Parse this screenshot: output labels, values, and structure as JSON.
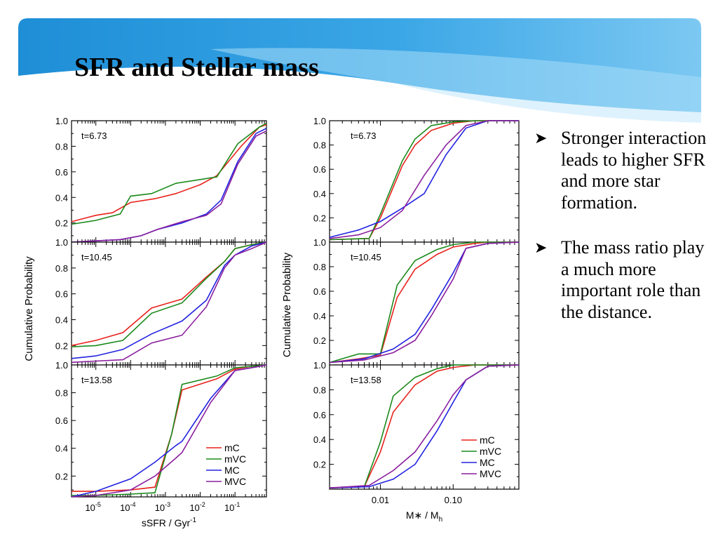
{
  "slide": {
    "title": "SFR and Stellar mass",
    "bullets": [
      "Stronger interaction leads to higher SFR and more star formation.",
      "The mass ratio play a much more important role than the distance."
    ],
    "bullet_icon": "arrow-bullet-icon",
    "banner_colors": [
      "#1e90d8",
      "#4fb3ea",
      "#9fd6f5"
    ]
  },
  "chart_data": [
    {
      "type": "line",
      "ylabel": "Cumulative Probability",
      "xlabel": "sSFR / Gyr",
      "xlabel_superscript": "-1",
      "xscale": "log",
      "xlim": [
        2e-06,
        0.8
      ],
      "x_ticks": [
        1e-05,
        0.0001,
        0.001,
        0.01,
        0.1
      ],
      "x_tick_base": "10",
      "x_tick_exponents": [
        "-5",
        "-4",
        "-3",
        "-2",
        "-1"
      ],
      "ylim": [
        0.05,
        1.0
      ],
      "y_ticks": [
        "0.2",
        "0.4",
        "0.6",
        "0.8",
        "1.0"
      ],
      "legend": [
        "mC",
        "mVC",
        "MC",
        "MVC"
      ],
      "legend_position": "bottom-right of bottom panel",
      "colors": {
        "mC": "#e8221c",
        "mVC": "#1c8a1c",
        "MC": "#2222e0",
        "MVC": "#8a1e9e"
      },
      "panels": [
        {
          "label": "t=6.73",
          "series": [
            {
              "name": "mC",
              "x": [
                2e-06,
                1e-05,
                3e-05,
                0.0001,
                0.0005,
                0.002,
                0.01,
                0.03,
                0.15,
                0.5,
                0.8
              ],
              "y": [
                0.21,
                0.26,
                0.28,
                0.36,
                0.39,
                0.43,
                0.5,
                0.57,
                0.8,
                0.95,
                0.97
              ]
            },
            {
              "name": "mVC",
              "x": [
                2e-06,
                1e-05,
                5e-05,
                0.0001,
                0.0004,
                0.002,
                0.01,
                0.03,
                0.12,
                0.5,
                0.8
              ],
              "y": [
                0.19,
                0.22,
                0.27,
                0.41,
                0.43,
                0.51,
                0.54,
                0.56,
                0.82,
                0.95,
                0.98
              ]
            },
            {
              "name": "MC",
              "x": [
                2e-06,
                1e-05,
                5e-05,
                0.0002,
                0.0006,
                0.003,
                0.015,
                0.04,
                0.12,
                0.4,
                0.8
              ],
              "y": [
                0.05,
                0.06,
                0.07,
                0.1,
                0.15,
                0.2,
                0.27,
                0.38,
                0.68,
                0.9,
                0.94
              ]
            },
            {
              "name": "MVC",
              "x": [
                2e-06,
                1e-05,
                5e-05,
                0.0002,
                0.0006,
                0.003,
                0.015,
                0.04,
                0.12,
                0.4,
                0.8
              ],
              "y": [
                0.05,
                0.06,
                0.07,
                0.1,
                0.15,
                0.21,
                0.26,
                0.35,
                0.66,
                0.88,
                0.92
              ]
            }
          ]
        },
        {
          "label": "t=10.45",
          "series": [
            {
              "name": "mC",
              "x": [
                2e-06,
                1e-05,
                6e-05,
                0.0004,
                0.003,
                0.015,
                0.05,
                0.1,
                0.3,
                0.8
              ],
              "y": [
                0.2,
                0.24,
                0.3,
                0.49,
                0.56,
                0.73,
                0.85,
                0.95,
                0.98,
                1.0
              ]
            },
            {
              "name": "mVC",
              "x": [
                2e-06,
                1e-05,
                6e-05,
                0.0004,
                0.003,
                0.015,
                0.05,
                0.1,
                0.3,
                0.8
              ],
              "y": [
                0.19,
                0.2,
                0.24,
                0.45,
                0.53,
                0.72,
                0.85,
                0.95,
                0.98,
                1.0
              ]
            },
            {
              "name": "MC",
              "x": [
                2e-06,
                1e-05,
                6e-05,
                0.0004,
                0.003,
                0.015,
                0.05,
                0.1,
                0.3,
                0.8
              ],
              "y": [
                0.1,
                0.12,
                0.17,
                0.29,
                0.39,
                0.55,
                0.82,
                0.9,
                0.97,
                1.0
              ]
            },
            {
              "name": "MVC",
              "x": [
                2e-06,
                1e-05,
                6e-05,
                0.0004,
                0.003,
                0.015,
                0.05,
                0.1,
                0.3,
                0.8
              ],
              "y": [
                0.07,
                0.08,
                0.09,
                0.22,
                0.28,
                0.5,
                0.8,
                0.9,
                0.95,
                1.0
              ]
            }
          ]
        },
        {
          "label": "t=13.58",
          "series": [
            {
              "name": "mC",
              "x": [
                2e-06,
                1e-05,
                0.0001,
                0.0005,
                0.0015,
                0.003,
                0.03,
                0.1,
                0.3,
                0.8
              ],
              "y": [
                0.09,
                0.09,
                0.1,
                0.12,
                0.5,
                0.82,
                0.9,
                0.97,
                0.99,
                1.0
              ]
            },
            {
              "name": "mVC",
              "x": [
                2e-06,
                1e-05,
                0.0001,
                0.0005,
                0.0015,
                0.003,
                0.03,
                0.1,
                0.3,
                0.8
              ],
              "y": [
                0.06,
                0.06,
                0.07,
                0.08,
                0.5,
                0.86,
                0.92,
                0.98,
                0.99,
                1.0
              ]
            },
            {
              "name": "MC",
              "x": [
                2e-06,
                1e-05,
                0.0001,
                0.0005,
                0.002,
                0.003,
                0.02,
                0.1,
                0.3,
                0.8
              ],
              "y": [
                0.05,
                0.09,
                0.18,
                0.3,
                0.42,
                0.45,
                0.76,
                0.96,
                0.98,
                1.0
              ]
            },
            {
              "name": "MVC",
              "x": [
                2e-06,
                1e-05,
                0.0001,
                0.0005,
                0.002,
                0.003,
                0.02,
                0.1,
                0.3,
                0.8
              ],
              "y": [
                0.05,
                0.06,
                0.1,
                0.2,
                0.33,
                0.37,
                0.73,
                0.96,
                0.98,
                1.0
              ]
            }
          ]
        }
      ]
    },
    {
      "type": "line",
      "ylabel": "Cumulative Probability",
      "xlabel": "M∗ / M",
      "xlabel_subscript": "h",
      "xscale": "log",
      "xlim": [
        0.002,
        0.8
      ],
      "x_ticks": [
        0.01,
        0.1
      ],
      "x_tick_labels": [
        "0.01",
        "0.10"
      ],
      "ylim": [
        0.0,
        1.0
      ],
      "y_ticks": [
        "0.2",
        "0.4",
        "0.6",
        "0.8",
        "1.0"
      ],
      "legend": [
        "mC",
        "mVC",
        "MC",
        "MVC"
      ],
      "legend_position": "bottom-right of bottom panel",
      "colors": {
        "mC": "#e8221c",
        "mVC": "#1c8a1c",
        "MC": "#2222e0",
        "MVC": "#8a1e9e"
      },
      "panels": [
        {
          "label": "t=6.73",
          "series": [
            {
              "name": "mC",
              "x": [
                0.002,
                0.007,
                0.01,
                0.02,
                0.03,
                0.05,
                0.1,
                0.2,
                0.3,
                0.8
              ],
              "y": [
                0.02,
                0.03,
                0.2,
                0.63,
                0.8,
                0.92,
                0.98,
                1.0,
                1.0,
                1.0
              ]
            },
            {
              "name": "mVC",
              "x": [
                0.002,
                0.007,
                0.01,
                0.02,
                0.03,
                0.05,
                0.1,
                0.2,
                0.3,
                0.8
              ],
              "y": [
                0.02,
                0.03,
                0.23,
                0.67,
                0.85,
                0.96,
                0.99,
                1.0,
                1.0,
                1.0
              ]
            },
            {
              "name": "MC",
              "x": [
                0.002,
                0.005,
                0.01,
                0.02,
                0.04,
                0.08,
                0.15,
                0.3,
                0.8
              ],
              "y": [
                0.04,
                0.1,
                0.17,
                0.28,
                0.4,
                0.72,
                0.94,
                1.0,
                1.0
              ]
            },
            {
              "name": "MVC",
              "x": [
                0.002,
                0.005,
                0.01,
                0.02,
                0.04,
                0.08,
                0.15,
                0.3,
                0.8
              ],
              "y": [
                0.03,
                0.06,
                0.12,
                0.26,
                0.55,
                0.8,
                0.96,
                1.0,
                1.0
              ]
            }
          ]
        },
        {
          "label": "t=10.45",
          "series": [
            {
              "name": "mC",
              "x": [
                0.002,
                0.005,
                0.01,
                0.017,
                0.03,
                0.06,
                0.1,
                0.2,
                0.3,
                0.8
              ],
              "y": [
                0.02,
                0.05,
                0.08,
                0.55,
                0.78,
                0.9,
                0.96,
                0.99,
                1.0,
                1.0
              ]
            },
            {
              "name": "mVC",
              "x": [
                0.002,
                0.005,
                0.01,
                0.017,
                0.03,
                0.06,
                0.1,
                0.2,
                0.3,
                0.8
              ],
              "y": [
                0.02,
                0.09,
                0.09,
                0.65,
                0.85,
                0.94,
                0.98,
                1.0,
                1.0,
                1.0
              ]
            },
            {
              "name": "MC",
              "x": [
                0.002,
                0.006,
                0.015,
                0.03,
                0.05,
                0.1,
                0.15,
                0.3,
                0.8
              ],
              "y": [
                0.02,
                0.05,
                0.13,
                0.25,
                0.45,
                0.75,
                0.95,
                0.99,
                1.0
              ]
            },
            {
              "name": "MVC",
              "x": [
                0.002,
                0.006,
                0.015,
                0.03,
                0.05,
                0.1,
                0.15,
                0.3,
                0.8
              ],
              "y": [
                0.02,
                0.04,
                0.1,
                0.2,
                0.4,
                0.7,
                0.95,
                0.99,
                1.0
              ]
            }
          ]
        },
        {
          "label": "t=13.58",
          "series": [
            {
              "name": "mC",
              "x": [
                0.002,
                0.006,
                0.01,
                0.015,
                0.03,
                0.06,
                0.1,
                0.2,
                0.3,
                0.8
              ],
              "y": [
                0.01,
                0.02,
                0.3,
                0.62,
                0.84,
                0.95,
                0.98,
                1.0,
                1.0,
                1.0
              ]
            },
            {
              "name": "mVC",
              "x": [
                0.002,
                0.006,
                0.01,
                0.015,
                0.03,
                0.06,
                0.1,
                0.2,
                0.3,
                0.8
              ],
              "y": [
                0.01,
                0.02,
                0.38,
                0.75,
                0.9,
                0.97,
                1.0,
                1.0,
                1.0,
                1.0
              ]
            },
            {
              "name": "MC",
              "x": [
                0.002,
                0.007,
                0.015,
                0.03,
                0.06,
                0.1,
                0.15,
                0.3,
                0.8
              ],
              "y": [
                0.01,
                0.02,
                0.08,
                0.2,
                0.47,
                0.7,
                0.88,
                0.99,
                1.0
              ]
            },
            {
              "name": "MVC",
              "x": [
                0.002,
                0.007,
                0.015,
                0.03,
                0.06,
                0.1,
                0.15,
                0.3,
                0.8
              ],
              "y": [
                0.01,
                0.03,
                0.15,
                0.3,
                0.55,
                0.76,
                0.88,
                0.99,
                1.0
              ]
            }
          ]
        }
      ]
    }
  ]
}
